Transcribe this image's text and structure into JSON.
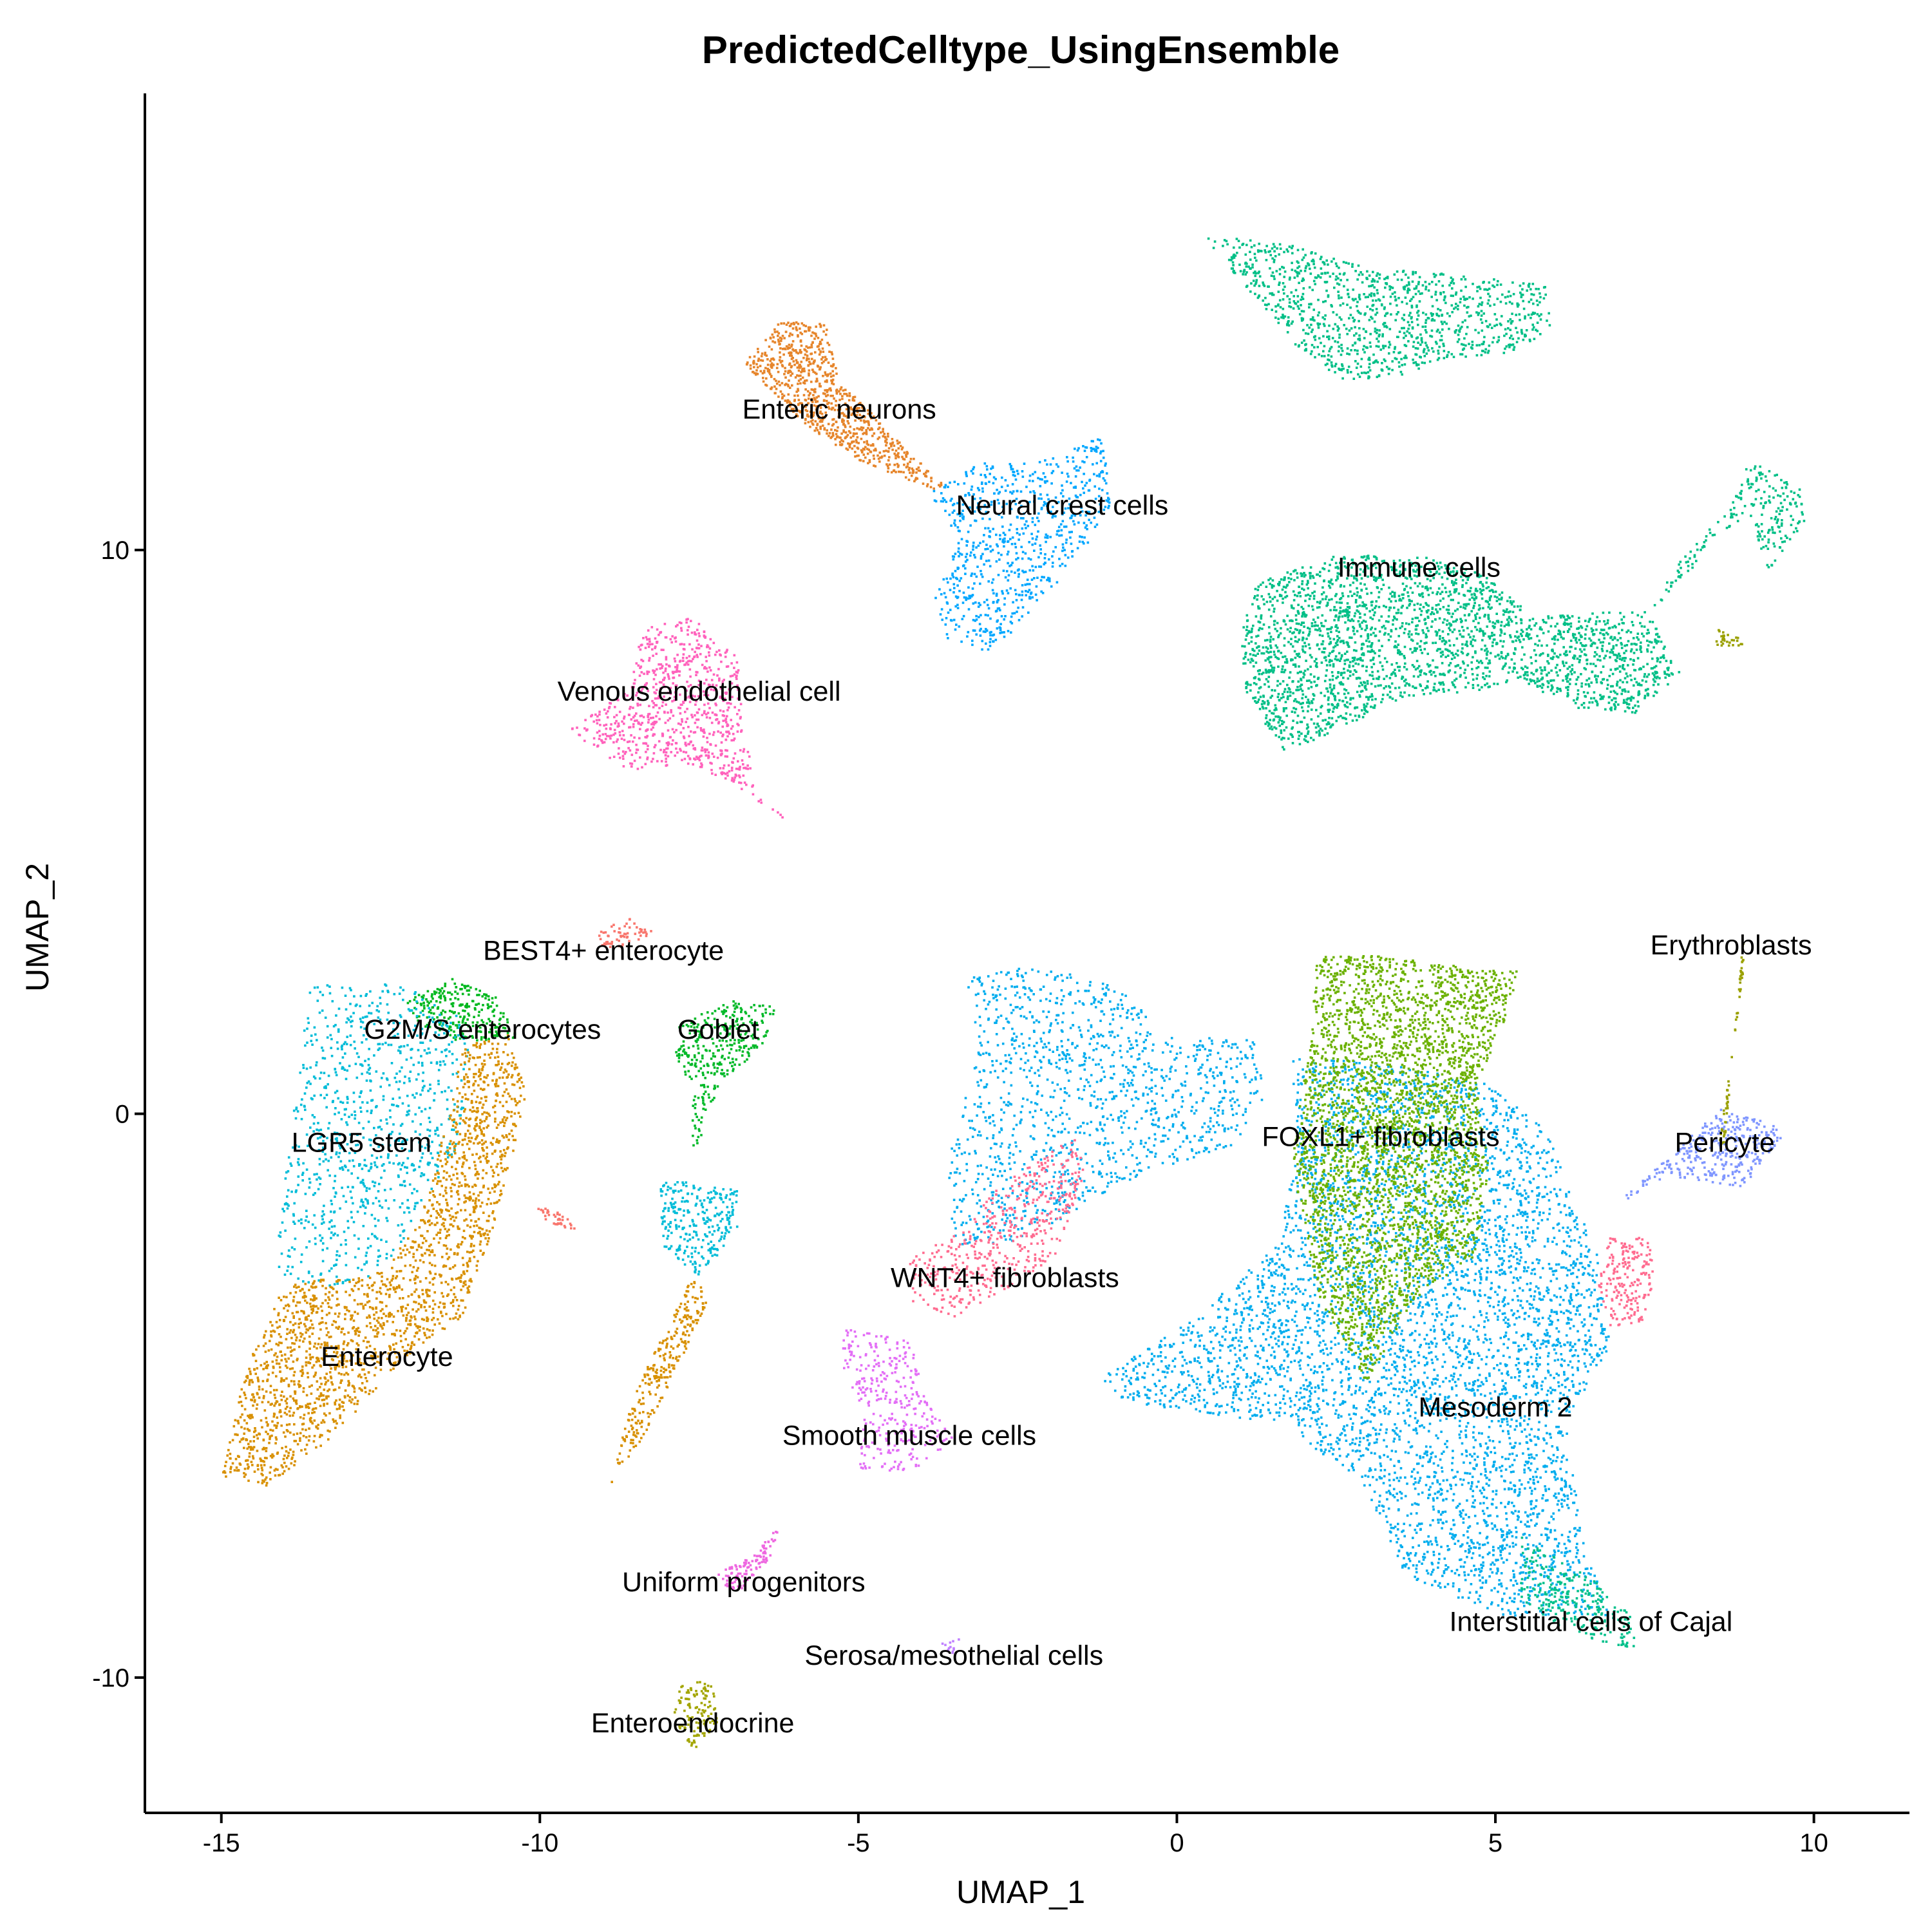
{
  "chart_data": {
    "type": "scatter",
    "title": "PredictedCelltype_UsingEnsemble",
    "xlabel": "UMAP_1",
    "ylabel": "UMAP_2",
    "xlim": [
      -16.2,
      11.5
    ],
    "ylim": [
      -12.4,
      18.1
    ],
    "xticks": [
      -15,
      -10,
      -5,
      0,
      5,
      10
    ],
    "yticks": [
      -10,
      0,
      10
    ],
    "xtick_labels": [
      "-15",
      "-10",
      "-5",
      "0",
      "5",
      "10"
    ],
    "ytick_labels": [
      "-10",
      "0",
      "10"
    ],
    "grid": false,
    "legend": "none",
    "clusters": [
      {
        "name": "BEST4+ enterocyte",
        "color": "#F8766D",
        "label_at": [
          -9.0,
          2.9
        ]
      },
      {
        "name": "Enterocyte",
        "color": "#D89000",
        "label_at": [
          -12.4,
          -4.3
        ]
      },
      {
        "name": "Enteric neurons",
        "color": "#E6852B",
        "label_at": [
          -5.3,
          12.5
        ]
      },
      {
        "name": "Enteroendocrine",
        "color": "#A3A500",
        "label_at": [
          -7.6,
          -10.8
        ]
      },
      {
        "name": "Erythroblasts",
        "color": "#9AA000",
        "label_at": [
          8.7,
          3.0
        ]
      },
      {
        "name": "FOXL1+ fibroblasts",
        "color": "#6BB100",
        "label_at": [
          3.2,
          -0.4
        ]
      },
      {
        "name": "G2M/S enterocytes",
        "color": "#00B81F",
        "label_at": [
          -10.9,
          1.5
        ]
      },
      {
        "name": "Goblet",
        "color": "#00B928",
        "label_at": [
          -7.2,
          1.5
        ]
      },
      {
        "name": "Immune cells",
        "color": "#00BF87",
        "label_at": [
          3.8,
          9.7
        ]
      },
      {
        "name": "Interstitial cells of Cajal",
        "color": "#00C08B",
        "label_at": [
          6.5,
          -9.0
        ]
      },
      {
        "name": "LGR5 stem",
        "color": "#00BCD8",
        "label_at": [
          -12.8,
          -0.5
        ]
      },
      {
        "name": "Mesoderm 2",
        "color": "#00ADEE",
        "label_at": [
          5.0,
          -5.2
        ]
      },
      {
        "name": "Neural crest cells",
        "color": "#00A7FF",
        "label_at": [
          -1.8,
          10.8
        ]
      },
      {
        "name": "Pericyte",
        "color": "#7F96FF",
        "label_at": [
          8.6,
          -0.5
        ]
      },
      {
        "name": "Serosa/mesothelial cells",
        "color": "#BF80FF",
        "label_at": [
          -3.5,
          -9.6
        ]
      },
      {
        "name": "Smooth muscle cells",
        "color": "#E36EF6",
        "label_at": [
          -4.2,
          -5.7
        ]
      },
      {
        "name": "Uniform progenitors",
        "color": "#EE67E0",
        "label_at": [
          -6.8,
          -8.3
        ]
      },
      {
        "name": "Venous endothelial cell",
        "color": "#FF62BC",
        "label_at": [
          -7.5,
          7.5
        ]
      },
      {
        "name": "WNT4+ fibroblasts",
        "color": "#FF6C90",
        "label_at": [
          -2.7,
          -2.9
        ]
      }
    ]
  }
}
